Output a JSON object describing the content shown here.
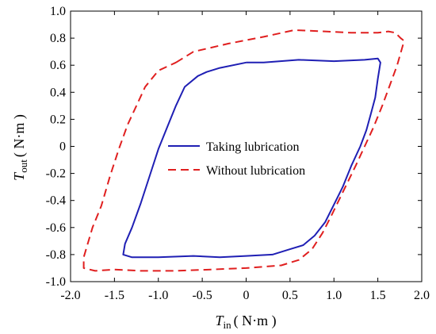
{
  "chart_data": {
    "type": "line",
    "title": "",
    "xlabel_main": "T",
    "xlabel_sub": "in",
    "xlabel_unit": "( N·m )",
    "ylabel_main": "T",
    "ylabel_sub": "out",
    "ylabel_unit": "( N·m )",
    "xlim": [
      -2.0,
      2.0
    ],
    "ylim": [
      -1.0,
      1.0
    ],
    "x_ticks": [
      "-2.0",
      "-1.5",
      "-1.0",
      "-0.5",
      "0",
      "0.5",
      "1.0",
      "1.5",
      "2.0"
    ],
    "y_ticks": [
      "1.0",
      "0.8",
      "0.6",
      "0.4",
      "0.2",
      "0",
      "-0.2",
      "-0.4",
      "-0.6",
      "-0.8",
      "-1.0"
    ],
    "grid": false,
    "legend_position": "center",
    "series": [
      {
        "name": "Taking lubrication",
        "color": "#1f1fb4",
        "style": "solid",
        "points": [
          [
            0.0,
            0.62
          ],
          [
            0.2,
            0.62
          ],
          [
            0.6,
            0.64
          ],
          [
            1.0,
            0.63
          ],
          [
            1.35,
            0.64
          ],
          [
            1.5,
            0.65
          ],
          [
            1.53,
            0.62
          ],
          [
            1.5,
            0.5
          ],
          [
            1.47,
            0.36
          ],
          [
            1.42,
            0.24
          ],
          [
            1.37,
            0.12
          ],
          [
            1.3,
            0.0
          ],
          [
            1.2,
            -0.14
          ],
          [
            1.1,
            -0.3
          ],
          [
            1.0,
            -0.43
          ],
          [
            0.9,
            -0.56
          ],
          [
            0.78,
            -0.66
          ],
          [
            0.65,
            -0.73
          ],
          [
            0.5,
            -0.76
          ],
          [
            0.3,
            -0.8
          ],
          [
            0.0,
            -0.81
          ],
          [
            -0.3,
            -0.82
          ],
          [
            -0.6,
            -0.81
          ],
          [
            -1.0,
            -0.82
          ],
          [
            -1.3,
            -0.82
          ],
          [
            -1.4,
            -0.8
          ],
          [
            -1.38,
            -0.72
          ],
          [
            -1.3,
            -0.6
          ],
          [
            -1.2,
            -0.42
          ],
          [
            -1.1,
            -0.22
          ],
          [
            -1.0,
            -0.02
          ],
          [
            -0.9,
            0.14
          ],
          [
            -0.8,
            0.3
          ],
          [
            -0.7,
            0.44
          ],
          [
            -0.55,
            0.52
          ],
          [
            -0.45,
            0.55
          ],
          [
            -0.3,
            0.58
          ],
          [
            0.0,
            0.62
          ]
        ]
      },
      {
        "name": "Without lubrication",
        "color": "#e01f1f",
        "style": "dashed",
        "points": [
          [
            -0.8,
            0.62
          ],
          [
            -0.6,
            0.7
          ],
          [
            -0.2,
            0.76
          ],
          [
            0.2,
            0.81
          ],
          [
            0.55,
            0.86
          ],
          [
            0.9,
            0.85
          ],
          [
            1.2,
            0.84
          ],
          [
            1.5,
            0.84
          ],
          [
            1.62,
            0.85
          ],
          [
            1.7,
            0.84
          ],
          [
            1.76,
            0.8
          ],
          [
            1.8,
            0.78
          ],
          [
            1.72,
            0.6
          ],
          [
            1.63,
            0.44
          ],
          [
            1.55,
            0.3
          ],
          [
            1.45,
            0.14
          ],
          [
            1.35,
            0.0
          ],
          [
            1.25,
            -0.14
          ],
          [
            1.1,
            -0.34
          ],
          [
            0.98,
            -0.5
          ],
          [
            0.87,
            -0.64
          ],
          [
            0.75,
            -0.76
          ],
          [
            0.6,
            -0.84
          ],
          [
            0.4,
            -0.88
          ],
          [
            0.0,
            -0.9
          ],
          [
            -0.4,
            -0.91
          ],
          [
            -0.8,
            -0.92
          ],
          [
            -1.2,
            -0.92
          ],
          [
            -1.5,
            -0.91
          ],
          [
            -1.72,
            -0.92
          ],
          [
            -1.85,
            -0.9
          ],
          [
            -1.85,
            -0.82
          ],
          [
            -1.75,
            -0.6
          ],
          [
            -1.65,
            -0.44
          ],
          [
            -1.55,
            -0.22
          ],
          [
            -1.45,
            -0.02
          ],
          [
            -1.35,
            0.16
          ],
          [
            -1.25,
            0.3
          ],
          [
            -1.15,
            0.44
          ],
          [
            -1.0,
            0.56
          ],
          [
            -0.8,
            0.62
          ]
        ]
      }
    ]
  }
}
